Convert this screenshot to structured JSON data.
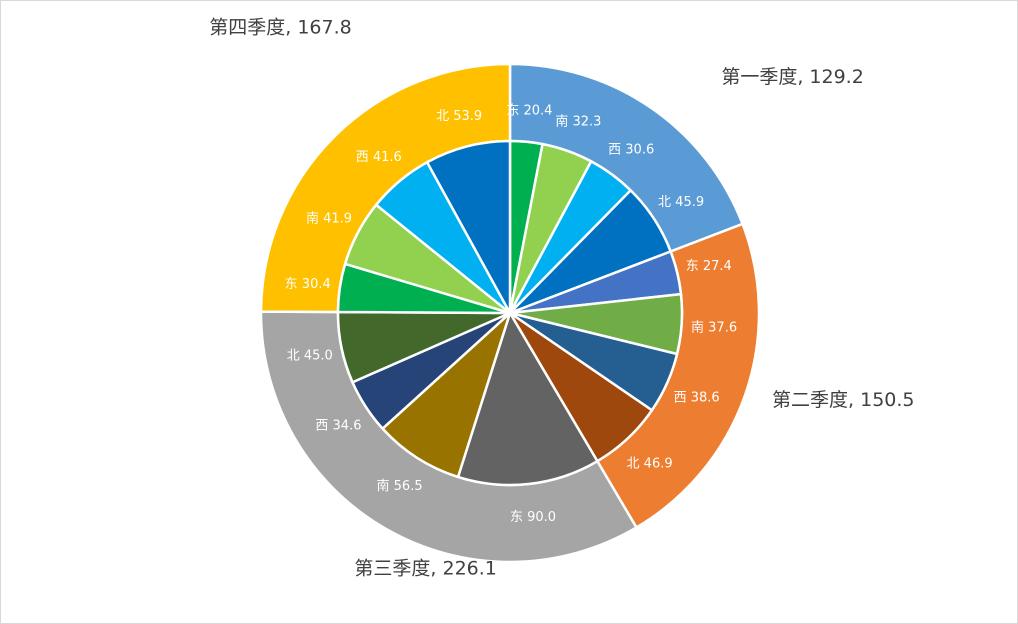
{
  "chart_data": {
    "type": "sunburst",
    "outer": [
      {
        "label": "第一季度",
        "value": 129.2,
        "value_label": "129.2",
        "color": "#5b9bd5"
      },
      {
        "label": "第二季度",
        "value": 150.5,
        "value_label": "150.5",
        "color": "#ed7d31"
      },
      {
        "label": "第三季度",
        "value": 226.1,
        "value_label": "226.1",
        "color": "#a5a5a5"
      },
      {
        "label": "第四季度",
        "value": 167.8,
        "value_label": "167.8",
        "color": "#ffc000"
      }
    ],
    "inner": [
      {
        "quarter": "第一季度",
        "label": "东",
        "value": 20.4,
        "value_label": "20.4",
        "color": "#00b050"
      },
      {
        "quarter": "第一季度",
        "label": "南",
        "value": 32.3,
        "value_label": "32.3",
        "color": "#92d050"
      },
      {
        "quarter": "第一季度",
        "label": "西",
        "value": 30.6,
        "value_label": "30.6",
        "color": "#00b0f0"
      },
      {
        "quarter": "第一季度",
        "label": "北",
        "value": 45.9,
        "value_label": "45.9",
        "color": "#0070c0"
      },
      {
        "quarter": "第二季度",
        "label": "东",
        "value": 27.4,
        "value_label": "27.4",
        "color": "#4472c4"
      },
      {
        "quarter": "第二季度",
        "label": "南",
        "value": 37.6,
        "value_label": "37.6",
        "color": "#70ad47"
      },
      {
        "quarter": "第二季度",
        "label": "西",
        "value": 38.6,
        "value_label": "38.6",
        "color": "#255e91"
      },
      {
        "quarter": "第二季度",
        "label": "北",
        "value": 46.9,
        "value_label": "46.9",
        "color": "#9e480e"
      },
      {
        "quarter": "第三季度",
        "label": "东",
        "value": 90.0,
        "value_label": "90.0",
        "color": "#636363"
      },
      {
        "quarter": "第三季度",
        "label": "南",
        "value": 56.5,
        "value_label": "56.5",
        "color": "#997300"
      },
      {
        "quarter": "第三季度",
        "label": "西",
        "value": 34.6,
        "value_label": "34.6",
        "color": "#264478"
      },
      {
        "quarter": "第三季度",
        "label": "北",
        "value": 45.0,
        "value_label": "45.0",
        "color": "#43682b"
      },
      {
        "quarter": "第四季度",
        "label": "东",
        "value": 30.4,
        "value_label": "30.4",
        "color": "#00b050"
      },
      {
        "quarter": "第四季度",
        "label": "南",
        "value": 41.9,
        "value_label": "41.9",
        "color": "#92d050"
      },
      {
        "quarter": "第四季度",
        "label": "西",
        "value": 41.6,
        "value_label": "41.6",
        "color": "#00b0f0"
      },
      {
        "quarter": "第四季度",
        "label": "北",
        "value": 53.9,
        "value_label": "53.9",
        "color": "#0070c0"
      }
    ]
  }
}
